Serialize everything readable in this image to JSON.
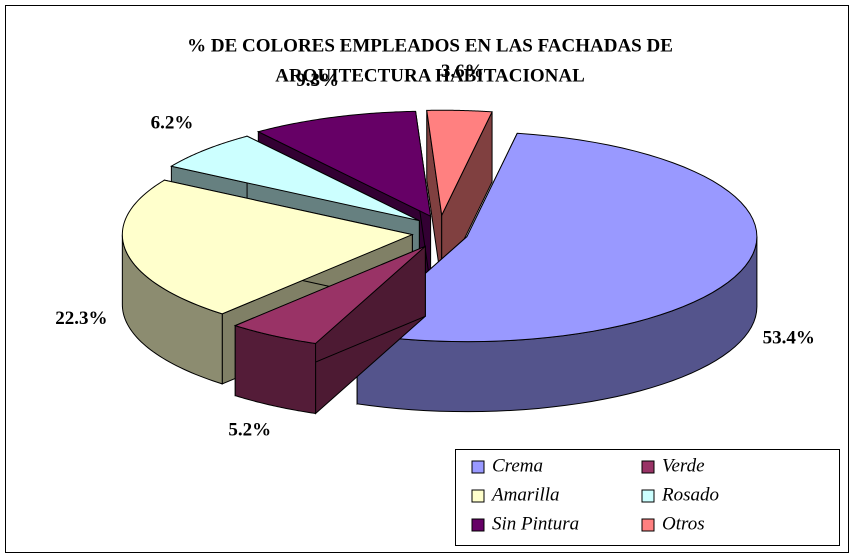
{
  "chart_data": {
    "type": "pie3d",
    "title": [
      "% DE COLORES EMPLEADOS EN LAS FACHADAS DE",
      "ARQUITECTURA HABITACIONAL"
    ],
    "categories": [
      "Crema",
      "Verde",
      "Amarilla",
      "Rosado",
      "Sin Pintura",
      "Otros"
    ],
    "values": [
      53.4,
      5.2,
      22.3,
      6.2,
      9.3,
      3.6
    ],
    "value_labels": [
      "53.4%",
      "5.2%",
      "22.3%",
      "6.2%",
      "9.3%",
      "3.6%"
    ],
    "colors": [
      "#9999ff",
      "#993366",
      "#ffffcc",
      "#ccffff",
      "#660066",
      "#ff8080"
    ],
    "legend": "bottom-right"
  }
}
